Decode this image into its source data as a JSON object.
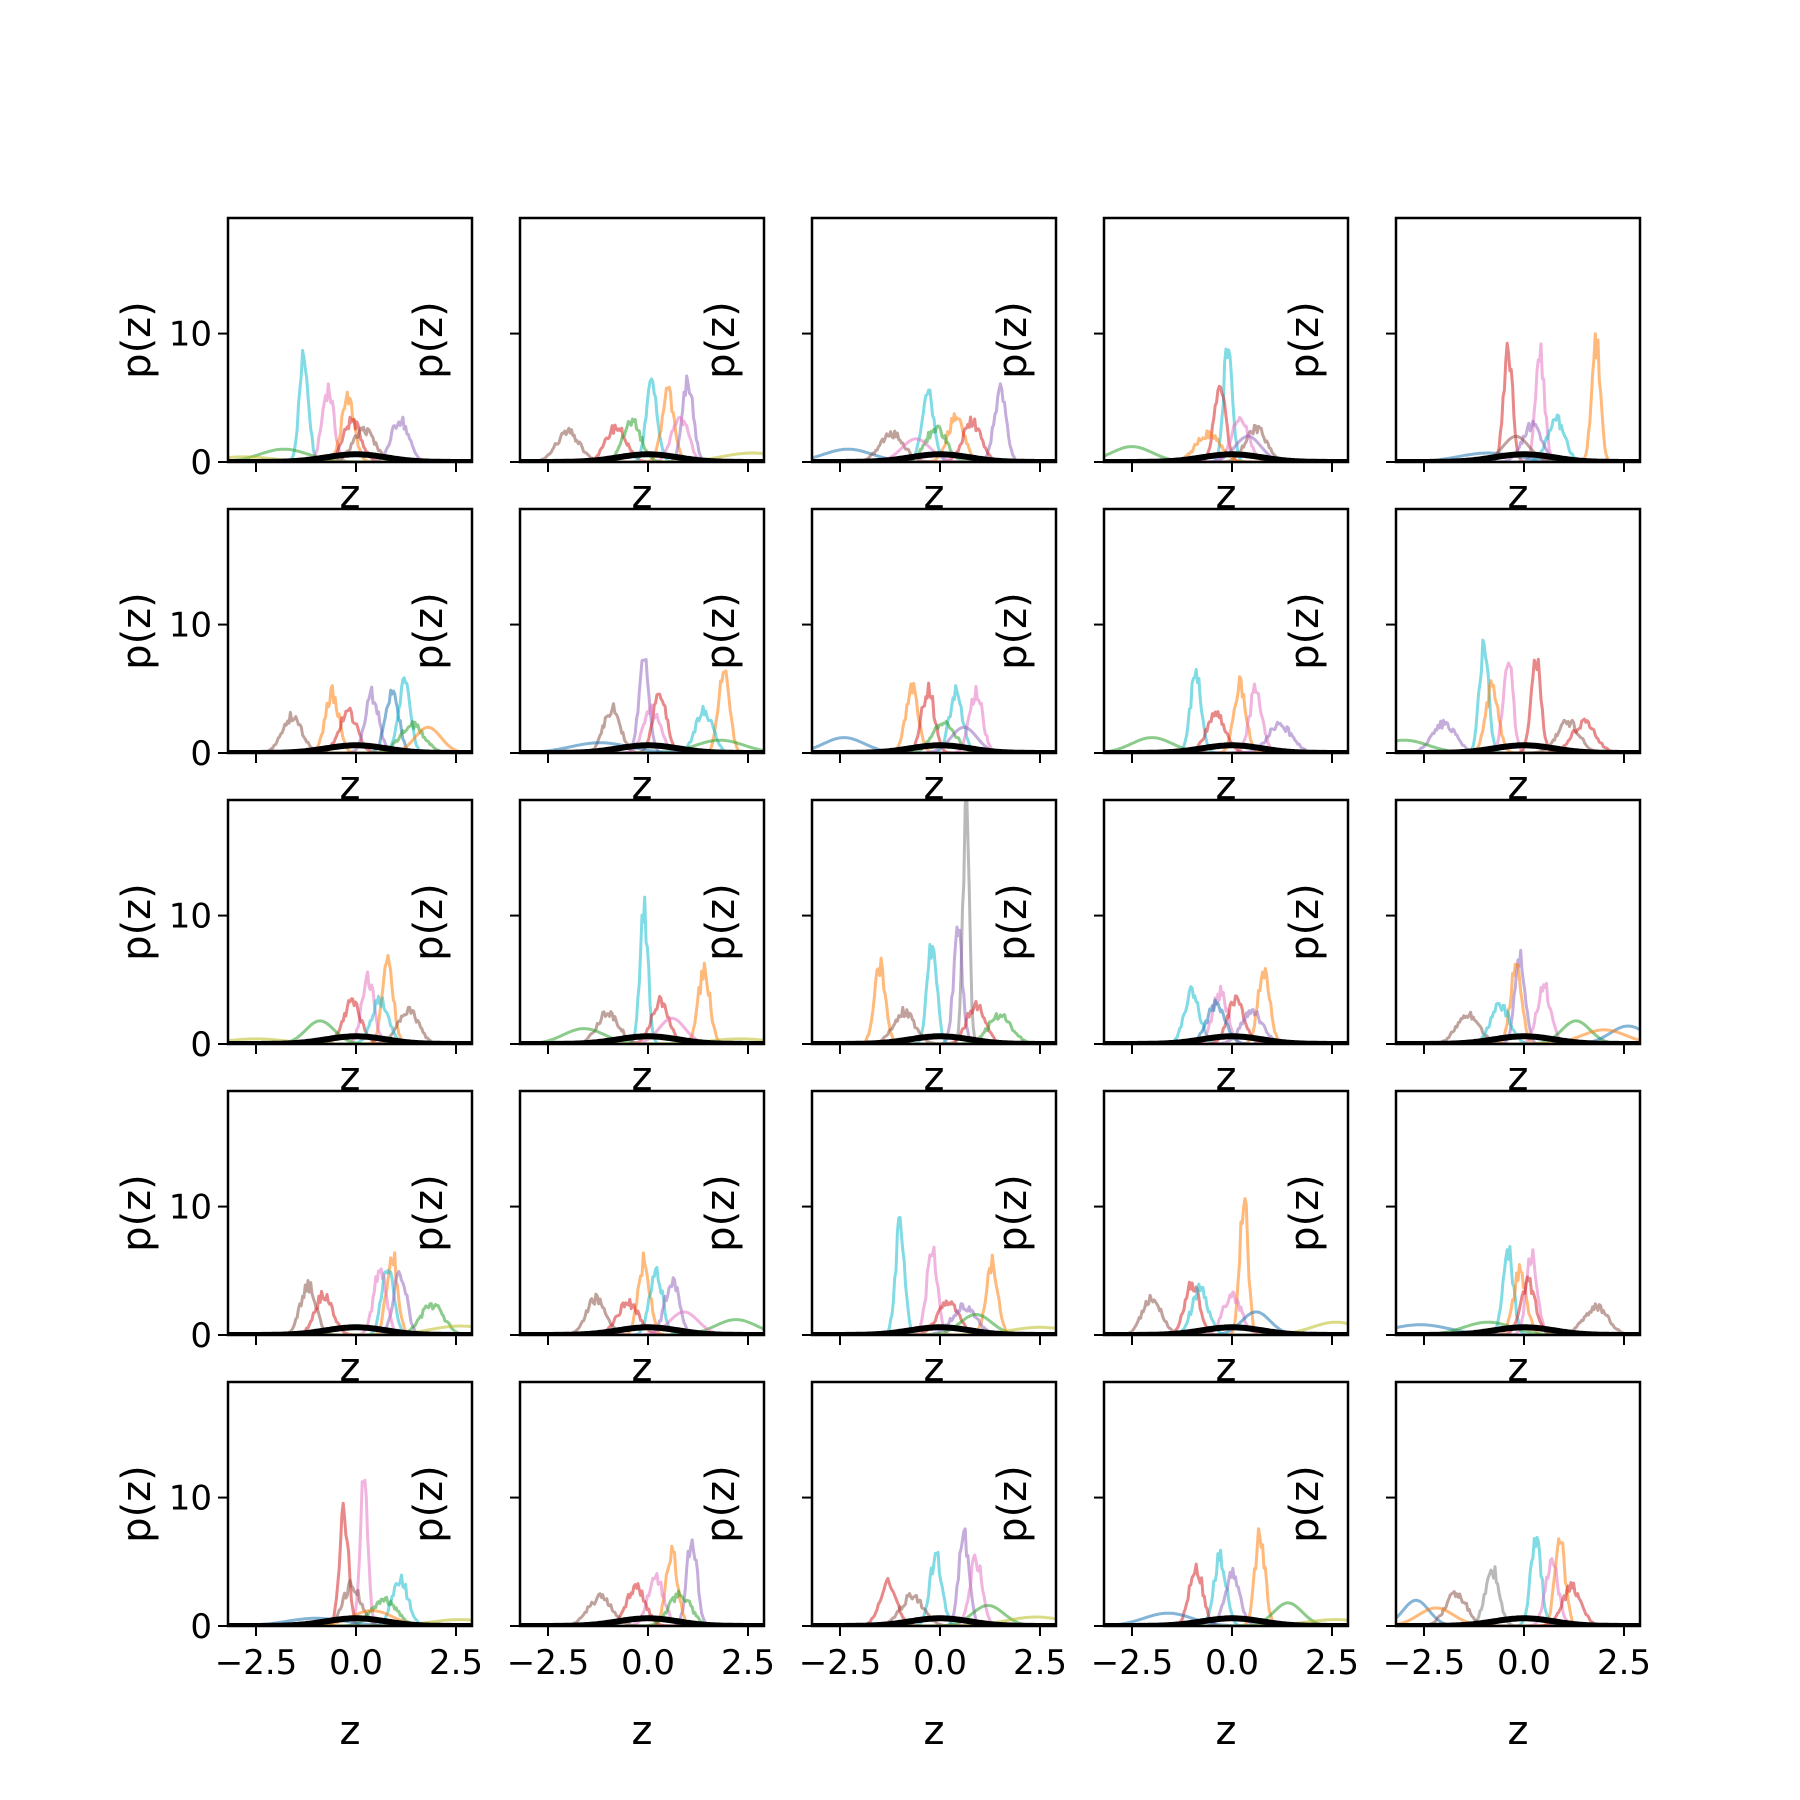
{
  "chart_data": {
    "type": "line",
    "layout": "5x5 grid of small multiples",
    "xlabel": "z",
    "ylabel": "p(z)",
    "xlim": [
      -3.2,
      2.9
    ],
    "ylim": [
      0,
      19
    ],
    "xticks": [
      -2.5,
      0.0,
      2.5
    ],
    "xtick_labels": [
      "−2.5",
      "0.0",
      "2.5"
    ],
    "yticks": [
      0,
      10
    ],
    "ytick_labels": [
      "0",
      "10"
    ],
    "grid": false,
    "legend": "none",
    "series_colors": [
      "#1f77b4",
      "#ff7f0e",
      "#2ca02c",
      "#d62728",
      "#9467bd",
      "#8c564b",
      "#e377c2",
      "#7f7f7f",
      "#bcbd22",
      "#17becf"
    ],
    "reference_color": "#000000",
    "panels": [
      {
        "peaks": [
          {
            "c": "#17becf",
            "mu": -1.3,
            "h": 8.2
          },
          {
            "c": "#e377c2",
            "mu": -0.7,
            "h": 5.7
          },
          {
            "c": "#ff7f0e",
            "mu": -0.2,
            "h": 4.8
          },
          {
            "c": "#d62728",
            "mu": -0.1,
            "h": 3.2
          },
          {
            "c": "#9467bd",
            "mu": 1.1,
            "h": 3.3
          },
          {
            "c": "#2ca02c",
            "mu": -1.8,
            "h": 1.0
          },
          {
            "c": "#8c564b",
            "mu": 0.2,
            "h": 2.5
          },
          {
            "c": "#bcbd22",
            "mu": -2.8,
            "h": 0.4
          }
        ]
      },
      {
        "peaks": [
          {
            "c": "#8c564b",
            "mu": -2.0,
            "h": 2.3
          },
          {
            "c": "#d62728",
            "mu": -0.8,
            "h": 2.7
          },
          {
            "c": "#17becf",
            "mu": 0.1,
            "h": 6.1
          },
          {
            "c": "#ff7f0e",
            "mu": 0.5,
            "h": 5.2
          },
          {
            "c": "#9467bd",
            "mu": 1.0,
            "h": 6.5
          },
          {
            "c": "#e377c2",
            "mu": 0.8,
            "h": 3.5
          },
          {
            "c": "#2ca02c",
            "mu": -0.4,
            "h": 3.1
          },
          {
            "c": "#bcbd22",
            "mu": 2.6,
            "h": 0.7
          }
        ]
      },
      {
        "peaks": [
          {
            "c": "#1f77b4",
            "mu": -2.3,
            "h": 1.0
          },
          {
            "c": "#8c564b",
            "mu": -1.2,
            "h": 2.2
          },
          {
            "c": "#17becf",
            "mu": -0.3,
            "h": 5.3
          },
          {
            "c": "#ff7f0e",
            "mu": 0.4,
            "h": 3.4
          },
          {
            "c": "#9467bd",
            "mu": 1.5,
            "h": 5.5
          },
          {
            "c": "#d62728",
            "mu": 0.8,
            "h": 3.1
          },
          {
            "c": "#2ca02c",
            "mu": -0.1,
            "h": 2.6
          },
          {
            "c": "#e377c2",
            "mu": -0.6,
            "h": 1.8
          }
        ]
      },
      {
        "peaks": [
          {
            "c": "#2ca02c",
            "mu": -2.5,
            "h": 1.2
          },
          {
            "c": "#17becf",
            "mu": -0.1,
            "h": 9.2
          },
          {
            "c": "#d62728",
            "mu": -0.3,
            "h": 5.8
          },
          {
            "c": "#8c564b",
            "mu": 0.6,
            "h": 2.6
          },
          {
            "c": "#e377c2",
            "mu": 0.2,
            "h": 3.4
          },
          {
            "c": "#9467bd",
            "mu": 0.4,
            "h": 2.0
          },
          {
            "c": "#ff7f0e",
            "mu": -0.6,
            "h": 2.2
          }
        ]
      },
      {
        "peaks": [
          {
            "c": "#ff7f0e",
            "mu": 1.8,
            "h": 9.2
          },
          {
            "c": "#d62728",
            "mu": -0.4,
            "h": 8.7
          },
          {
            "c": "#e377c2",
            "mu": 0.4,
            "h": 8.2
          },
          {
            "c": "#17becf",
            "mu": 0.8,
            "h": 3.3
          },
          {
            "c": "#1f77b4",
            "mu": -0.9,
            "h": 0.7
          },
          {
            "c": "#9467bd",
            "mu": 0.2,
            "h": 2.8
          },
          {
            "c": "#8c564b",
            "mu": -0.2,
            "h": 2.0
          }
        ]
      },
      {
        "peaks": [
          {
            "c": "#8c564b",
            "mu": -1.6,
            "h": 2.8
          },
          {
            "c": "#ff7f0e",
            "mu": -0.6,
            "h": 4.6
          },
          {
            "c": "#d62728",
            "mu": -0.2,
            "h": 3.2
          },
          {
            "c": "#9467bd",
            "mu": 0.4,
            "h": 4.5
          },
          {
            "c": "#1f77b4",
            "mu": 0.9,
            "h": 4.8
          },
          {
            "c": "#17becf",
            "mu": 1.2,
            "h": 5.4
          },
          {
            "c": "#2ca02c",
            "mu": 1.4,
            "h": 2.2
          },
          {
            "c": "#ff7f0e",
            "mu": 1.8,
            "h": 2.0
          }
        ]
      },
      {
        "peaks": [
          {
            "c": "#8c564b",
            "mu": -0.9,
            "h": 3.5
          },
          {
            "c": "#9467bd",
            "mu": -0.1,
            "h": 7.3
          },
          {
            "c": "#d62728",
            "mu": 0.3,
            "h": 4.8
          },
          {
            "c": "#ff7f0e",
            "mu": 1.9,
            "h": 6.2
          },
          {
            "c": "#17becf",
            "mu": 1.4,
            "h": 3.4
          },
          {
            "c": "#2ca02c",
            "mu": 1.8,
            "h": 1.0
          },
          {
            "c": "#e377c2",
            "mu": 0.1,
            "h": 3.3
          },
          {
            "c": "#1f77b4",
            "mu": -1.2,
            "h": 0.8
          }
        ]
      },
      {
        "peaks": [
          {
            "c": "#1f77b4",
            "mu": -2.4,
            "h": 1.2
          },
          {
            "c": "#ff7f0e",
            "mu": -0.7,
            "h": 5.2
          },
          {
            "c": "#d62728",
            "mu": -0.3,
            "h": 5.0
          },
          {
            "c": "#17becf",
            "mu": 0.4,
            "h": 4.6
          },
          {
            "c": "#e377c2",
            "mu": 0.9,
            "h": 4.8
          },
          {
            "c": "#2ca02c",
            "mu": 0.1,
            "h": 2.4
          },
          {
            "c": "#9467bd",
            "mu": 0.6,
            "h": 2.0
          }
        ]
      },
      {
        "peaks": [
          {
            "c": "#2ca02c",
            "mu": -2.0,
            "h": 1.2
          },
          {
            "c": "#17becf",
            "mu": -0.9,
            "h": 6.2
          },
          {
            "c": "#ff7f0e",
            "mu": 0.2,
            "h": 5.5
          },
          {
            "c": "#e377c2",
            "mu": 0.6,
            "h": 4.9
          },
          {
            "c": "#d62728",
            "mu": -0.4,
            "h": 2.9
          },
          {
            "c": "#9467bd",
            "mu": 1.2,
            "h": 2.2
          }
        ]
      },
      {
        "peaks": [
          {
            "c": "#17becf",
            "mu": -1.0,
            "h": 8.2
          },
          {
            "c": "#e377c2",
            "mu": -0.4,
            "h": 7.4
          },
          {
            "c": "#d62728",
            "mu": 0.3,
            "h": 7.2
          },
          {
            "c": "#ff7f0e",
            "mu": -0.8,
            "h": 5.0
          },
          {
            "c": "#9467bd",
            "mu": -2.0,
            "h": 2.3
          },
          {
            "c": "#8c564b",
            "mu": 1.1,
            "h": 2.4
          },
          {
            "c": "#d62728",
            "mu": 1.5,
            "h": 2.3
          },
          {
            "c": "#2ca02c",
            "mu": -3.0,
            "h": 1.0
          }
        ]
      },
      {
        "peaks": [
          {
            "c": "#ff7f0e",
            "mu": 0.8,
            "h": 6.2
          },
          {
            "c": "#e377c2",
            "mu": 0.3,
            "h": 5.3
          },
          {
            "c": "#d62728",
            "mu": -0.1,
            "h": 3.2
          },
          {
            "c": "#8c564b",
            "mu": 1.3,
            "h": 2.7
          },
          {
            "c": "#17becf",
            "mu": 0.6,
            "h": 3.5
          },
          {
            "c": "#2ca02c",
            "mu": -0.9,
            "h": 1.8
          },
          {
            "c": "#bcbd22",
            "mu": -2.5,
            "h": 0.4
          }
        ]
      },
      {
        "peaks": [
          {
            "c": "#17becf",
            "mu": -0.1,
            "h": 10.3
          },
          {
            "c": "#ff7f0e",
            "mu": 1.4,
            "h": 5.6
          },
          {
            "c": "#d62728",
            "mu": 0.3,
            "h": 3.3
          },
          {
            "c": "#8c564b",
            "mu": -1.0,
            "h": 2.5
          },
          {
            "c": "#2ca02c",
            "mu": -1.6,
            "h": 1.2
          },
          {
            "c": "#e377c2",
            "mu": 0.6,
            "h": 2.0
          },
          {
            "c": "#bcbd22",
            "mu": 2.3,
            "h": 0.4
          }
        ]
      },
      {
        "peaks": [
          {
            "c": "#7f7f7f",
            "mu": 0.65,
            "h": 18.0
          },
          {
            "c": "#9467bd",
            "mu": 0.45,
            "h": 8.3
          },
          {
            "c": "#17becf",
            "mu": -0.2,
            "h": 7.6
          },
          {
            "c": "#ff7f0e",
            "mu": -1.5,
            "h": 6.0
          },
          {
            "c": "#d62728",
            "mu": 0.9,
            "h": 3.1
          },
          {
            "c": "#8c564b",
            "mu": -0.9,
            "h": 2.5
          },
          {
            "c": "#2ca02c",
            "mu": 1.5,
            "h": 2.2
          }
        ]
      },
      {
        "peaks": [
          {
            "c": "#17becf",
            "mu": -1.0,
            "h": 4.0
          },
          {
            "c": "#ff7f0e",
            "mu": 0.8,
            "h": 5.6
          },
          {
            "c": "#e377c2",
            "mu": -0.3,
            "h": 4.0
          },
          {
            "c": "#d62728",
            "mu": 0.1,
            "h": 3.5
          },
          {
            "c": "#1f77b4",
            "mu": -0.4,
            "h": 3.0
          },
          {
            "c": "#9467bd",
            "mu": 0.5,
            "h": 2.5
          }
        ]
      },
      {
        "peaks": [
          {
            "c": "#9467bd",
            "mu": -0.1,
            "h": 6.8
          },
          {
            "c": "#ff7f0e",
            "mu": -0.2,
            "h": 6.2
          },
          {
            "c": "#e377c2",
            "mu": 0.5,
            "h": 4.4
          },
          {
            "c": "#8c564b",
            "mu": -1.4,
            "h": 2.4
          },
          {
            "c": "#17becf",
            "mu": -0.6,
            "h": 3.0
          },
          {
            "c": "#2ca02c",
            "mu": 1.3,
            "h": 1.8
          },
          {
            "c": "#1f77b4",
            "mu": 2.6,
            "h": 1.4
          },
          {
            "c": "#ff7f0e",
            "mu": 2.0,
            "h": 1.1
          }
        ]
      },
      {
        "peaks": [
          {
            "c": "#8c564b",
            "mu": -1.2,
            "h": 3.8
          },
          {
            "c": "#d62728",
            "mu": -0.8,
            "h": 3.2
          },
          {
            "c": "#ff7f0e",
            "mu": 0.9,
            "h": 6.4
          },
          {
            "c": "#17becf",
            "mu": 0.8,
            "h": 5.6
          },
          {
            "c": "#9467bd",
            "mu": 1.1,
            "h": 5.0
          },
          {
            "c": "#e377c2",
            "mu": 0.6,
            "h": 4.9
          },
          {
            "c": "#2ca02c",
            "mu": 1.9,
            "h": 2.3
          },
          {
            "c": "#bcbd22",
            "mu": 2.6,
            "h": 0.7
          }
        ]
      },
      {
        "peaks": [
          {
            "c": "#8c564b",
            "mu": -1.3,
            "h": 2.8
          },
          {
            "c": "#ff7f0e",
            "mu": -0.1,
            "h": 5.7
          },
          {
            "c": "#17becf",
            "mu": 0.2,
            "h": 5.0
          },
          {
            "c": "#9467bd",
            "mu": 0.6,
            "h": 4.2
          },
          {
            "c": "#d62728",
            "mu": -0.5,
            "h": 2.5
          },
          {
            "c": "#2ca02c",
            "mu": 2.2,
            "h": 1.2
          },
          {
            "c": "#e377c2",
            "mu": 0.9,
            "h": 1.8
          }
        ]
      },
      {
        "peaks": [
          {
            "c": "#17becf",
            "mu": -1.0,
            "h": 8.4
          },
          {
            "c": "#e377c2",
            "mu": -0.2,
            "h": 6.5
          },
          {
            "c": "#ff7f0e",
            "mu": 1.3,
            "h": 5.7
          },
          {
            "c": "#d62728",
            "mu": 0.2,
            "h": 2.6
          },
          {
            "c": "#9467bd",
            "mu": 0.6,
            "h": 2.2
          },
          {
            "c": "#2ca02c",
            "mu": 0.9,
            "h": 1.6
          },
          {
            "c": "#bcbd22",
            "mu": 2.5,
            "h": 0.6
          }
        ]
      },
      {
        "peaks": [
          {
            "c": "#ff7f0e",
            "mu": 0.3,
            "h": 10.4
          },
          {
            "c": "#8c564b",
            "mu": -2.0,
            "h": 2.9
          },
          {
            "c": "#d62728",
            "mu": -1.0,
            "h": 4.1
          },
          {
            "c": "#17becf",
            "mu": -0.8,
            "h": 3.5
          },
          {
            "c": "#e377c2",
            "mu": 0.0,
            "h": 3.0
          },
          {
            "c": "#1f77b4",
            "mu": 0.6,
            "h": 1.8
          },
          {
            "c": "#bcbd22",
            "mu": 2.6,
            "h": 1.0
          }
        ]
      },
      {
        "peaks": [
          {
            "c": "#17becf",
            "mu": -0.4,
            "h": 6.9
          },
          {
            "c": "#ff7f0e",
            "mu": -0.1,
            "h": 4.8
          },
          {
            "c": "#e377c2",
            "mu": 0.2,
            "h": 6.3
          },
          {
            "c": "#d62728",
            "mu": 0.1,
            "h": 4.0
          },
          {
            "c": "#1f77b4",
            "mu": -2.6,
            "h": 0.8
          },
          {
            "c": "#8c564b",
            "mu": 1.8,
            "h": 2.2
          },
          {
            "c": "#2ca02c",
            "mu": -0.9,
            "h": 1.0
          }
        ]
      },
      {
        "peaks": [
          {
            "c": "#e377c2",
            "mu": 0.2,
            "h": 11.3
          },
          {
            "c": "#d62728",
            "mu": -0.3,
            "h": 8.8
          },
          {
            "c": "#17becf",
            "mu": 1.1,
            "h": 3.6
          },
          {
            "c": "#8c564b",
            "mu": -0.1,
            "h": 3.2
          },
          {
            "c": "#2ca02c",
            "mu": 0.7,
            "h": 2.1
          },
          {
            "c": "#ff7f0e",
            "mu": 0.4,
            "h": 1.2
          },
          {
            "c": "#1f77b4",
            "mu": -1.0,
            "h": 0.6
          },
          {
            "c": "#bcbd22",
            "mu": 2.6,
            "h": 0.5
          }
        ]
      },
      {
        "peaks": [
          {
            "c": "#9467bd",
            "mu": 1.1,
            "h": 7.1
          },
          {
            "c": "#ff7f0e",
            "mu": 0.6,
            "h": 5.6
          },
          {
            "c": "#e377c2",
            "mu": 0.2,
            "h": 3.6
          },
          {
            "c": "#d62728",
            "mu": -0.3,
            "h": 3.0
          },
          {
            "c": "#8c564b",
            "mu": -1.2,
            "h": 2.2
          },
          {
            "c": "#2ca02c",
            "mu": 0.8,
            "h": 2.5
          }
        ]
      },
      {
        "peaks": [
          {
            "c": "#9467bd",
            "mu": 0.6,
            "h": 7.0
          },
          {
            "c": "#e377c2",
            "mu": 0.9,
            "h": 5.2
          },
          {
            "c": "#17becf",
            "mu": -0.1,
            "h": 5.3
          },
          {
            "c": "#d62728",
            "mu": -1.3,
            "h": 3.4
          },
          {
            "c": "#8c564b",
            "mu": -0.7,
            "h": 2.3
          },
          {
            "c": "#2ca02c",
            "mu": 1.2,
            "h": 1.6
          },
          {
            "c": "#bcbd22",
            "mu": 2.4,
            "h": 0.7
          }
        ]
      },
      {
        "peaks": [
          {
            "c": "#ff7f0e",
            "mu": 0.7,
            "h": 7.0
          },
          {
            "c": "#17becf",
            "mu": -0.3,
            "h": 5.3
          },
          {
            "c": "#d62728",
            "mu": -0.9,
            "h": 4.6
          },
          {
            "c": "#9467bd",
            "mu": 0.0,
            "h": 4.0
          },
          {
            "c": "#1f77b4",
            "mu": -1.6,
            "h": 1.0
          },
          {
            "c": "#2ca02c",
            "mu": 1.4,
            "h": 1.8
          },
          {
            "c": "#bcbd22",
            "mu": 2.6,
            "h": 0.5
          }
        ]
      },
      {
        "peaks": [
          {
            "c": "#ff7f0e",
            "mu": 0.9,
            "h": 7.0
          },
          {
            "c": "#17becf",
            "mu": 0.3,
            "h": 6.6
          },
          {
            "c": "#e377c2",
            "mu": 0.7,
            "h": 4.8
          },
          {
            "c": "#7f7f7f",
            "mu": -0.8,
            "h": 4.4
          },
          {
            "c": "#d62728",
            "mu": 1.2,
            "h": 3.0
          },
          {
            "c": "#1f77b4",
            "mu": -2.7,
            "h": 2.0
          },
          {
            "c": "#8c564b",
            "mu": -1.7,
            "h": 2.6
          },
          {
            "c": "#ff7f0e",
            "mu": -2.2,
            "h": 1.4
          }
        ]
      }
    ]
  }
}
